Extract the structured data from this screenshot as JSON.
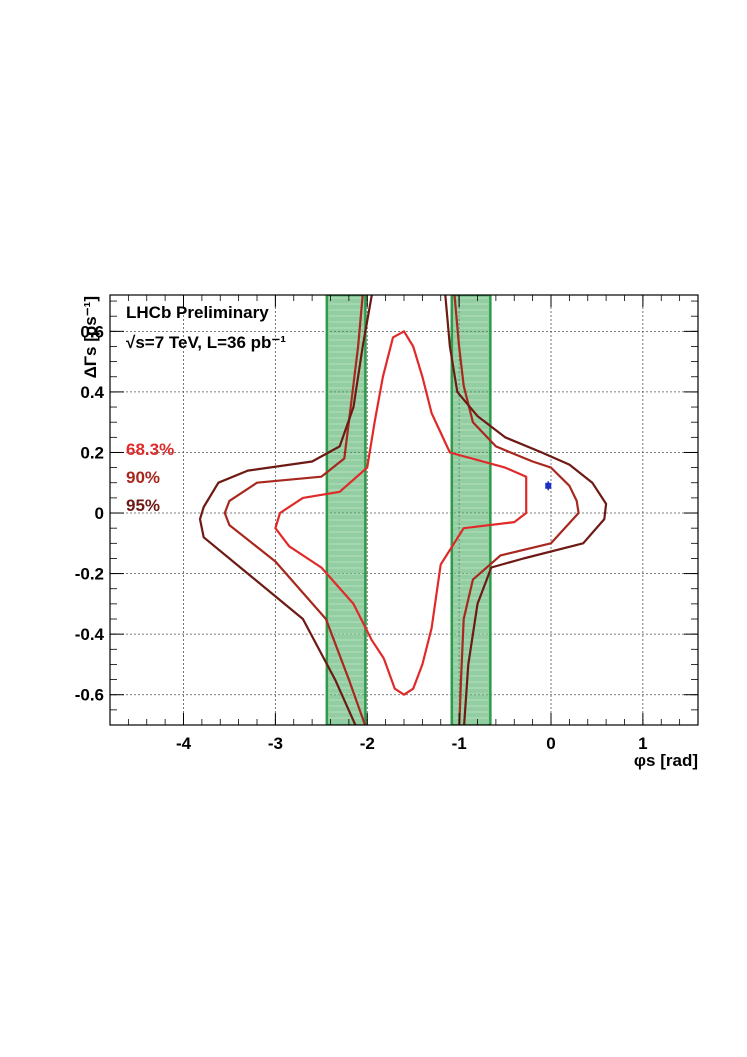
{
  "chart_data": {
    "type": "contour",
    "xlabel": "φs [rad]",
    "ylabel": "ΔΓs [ps⁻¹]",
    "xlim": [
      -4.8,
      1.6
    ],
    "ylim": [
      -0.7,
      0.72
    ],
    "grid": true,
    "x_ticks": [
      -4,
      -3,
      -2,
      -1,
      0,
      1
    ],
    "y_ticks": [
      -0.6,
      -0.4,
      -0.2,
      0,
      0.2,
      0.4,
      0.6
    ],
    "x_tick_labels": [
      "-4",
      "-3",
      "-2",
      "-1",
      "0",
      "1"
    ],
    "y_tick_labels": [
      "-0.6",
      "-0.4",
      "-0.2",
      "0",
      "0.2",
      "0.4",
      "0.6"
    ],
    "annotations": {
      "experiment": "LHCb Preliminary",
      "conditions": "√s=7 TeV, L=36 pb⁻¹"
    },
    "colors": {
      "cl683": "#e02a2a",
      "cl90": "#a8281f",
      "cl95": "#6e1a14",
      "band": "#3aa555",
      "point": "#1a2fc8"
    },
    "bands": [
      {
        "x_min": -2.44,
        "x_max": -2.02
      },
      {
        "x_min": -1.08,
        "x_max": -0.66
      }
    ],
    "best_fit": {
      "x": -0.03,
      "y": 0.09,
      "y_err": 0.015
    },
    "series": [
      {
        "name": "68.3%",
        "color": "#e02a2a",
        "contours": [
          [
            [
              -1.82,
              -0.48
            ],
            [
              -1.95,
              -0.42
            ],
            [
              -2.15,
              -0.3
            ],
            [
              -2.5,
              -0.18
            ],
            [
              -2.85,
              -0.11
            ],
            [
              -3.0,
              -0.05
            ],
            [
              -2.95,
              0.0
            ],
            [
              -2.7,
              0.05
            ],
            [
              -2.3,
              0.07
            ],
            [
              -2.0,
              0.15
            ],
            [
              -1.92,
              0.3
            ],
            [
              -1.83,
              0.45
            ],
            [
              -1.72,
              0.58
            ],
            [
              -1.6,
              0.6
            ],
            [
              -1.5,
              0.55
            ],
            [
              -1.4,
              0.45
            ],
            [
              -1.3,
              0.33
            ],
            [
              -1.1,
              0.2
            ],
            [
              -0.5,
              0.15
            ],
            [
              -0.27,
              0.12
            ],
            [
              -0.27,
              0.0
            ],
            [
              -0.4,
              -0.03
            ],
            [
              -0.95,
              -0.05
            ],
            [
              -1.2,
              -0.17
            ],
            [
              -1.3,
              -0.38
            ],
            [
              -1.4,
              -0.5
            ],
            [
              -1.5,
              -0.58
            ],
            [
              -1.6,
              -0.6
            ],
            [
              -1.7,
              -0.58
            ],
            [
              -1.82,
              -0.48
            ]
          ]
        ]
      },
      {
        "name": "90%",
        "color": "#a8281f",
        "contours": [
          [
            [
              -2.05,
              0.72
            ],
            [
              -2.1,
              0.55
            ],
            [
              -2.18,
              0.35
            ],
            [
              -2.25,
              0.18
            ],
            [
              -2.5,
              0.12
            ],
            [
              -3.2,
              0.1
            ],
            [
              -3.5,
              0.04
            ],
            [
              -3.55,
              0.0
            ],
            [
              -3.5,
              -0.04
            ],
            [
              -3.0,
              -0.16
            ],
            [
              -2.45,
              -0.35
            ],
            [
              -2.2,
              -0.55
            ],
            [
              -2.0,
              -0.72
            ]
          ],
          [
            [
              -1.05,
              0.72
            ],
            [
              -1.0,
              0.55
            ],
            [
              -0.95,
              0.42
            ],
            [
              -0.85,
              0.3
            ],
            [
              -0.6,
              0.22
            ],
            [
              -0.2,
              0.17
            ],
            [
              0.0,
              0.15
            ],
            [
              0.2,
              0.09
            ],
            [
              0.28,
              0.04
            ],
            [
              0.3,
              0.0
            ],
            [
              0.0,
              -0.1
            ],
            [
              -0.55,
              -0.14
            ],
            [
              -0.85,
              -0.22
            ],
            [
              -0.95,
              -0.35
            ],
            [
              -0.98,
              -0.55
            ],
            [
              -1.0,
              -0.72
            ]
          ]
        ]
      },
      {
        "name": "95%",
        "color": "#6e1a14",
        "contours": [
          [
            [
              -1.95,
              0.72
            ],
            [
              -2.05,
              0.55
            ],
            [
              -2.15,
              0.35
            ],
            [
              -2.3,
              0.22
            ],
            [
              -2.6,
              0.17
            ],
            [
              -3.3,
              0.14
            ],
            [
              -3.62,
              0.1
            ],
            [
              -3.78,
              0.02
            ],
            [
              -3.82,
              -0.02
            ],
            [
              -3.78,
              -0.08
            ],
            [
              -3.3,
              -0.2
            ],
            [
              -2.7,
              -0.35
            ],
            [
              -2.35,
              -0.55
            ],
            [
              -2.1,
              -0.72
            ]
          ],
          [
            [
              -1.15,
              0.72
            ],
            [
              -1.1,
              0.55
            ],
            [
              -1.02,
              0.4
            ],
            [
              -0.8,
              0.32
            ],
            [
              -0.5,
              0.25
            ],
            [
              -0.1,
              0.2
            ],
            [
              0.2,
              0.16
            ],
            [
              0.45,
              0.1
            ],
            [
              0.6,
              0.03
            ],
            [
              0.58,
              -0.02
            ],
            [
              0.35,
              -0.1
            ],
            [
              -0.3,
              -0.15
            ],
            [
              -0.65,
              -0.18
            ],
            [
              -0.8,
              -0.3
            ],
            [
              -0.9,
              -0.5
            ],
            [
              -0.95,
              -0.72
            ]
          ]
        ]
      }
    ]
  }
}
